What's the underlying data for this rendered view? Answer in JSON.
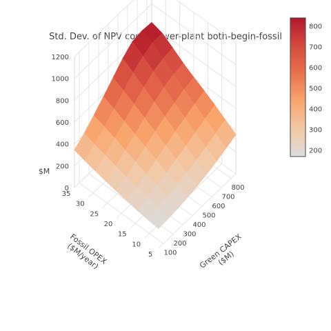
{
  "chart_data": {
    "type": "surface",
    "title": "Std. Dev. of NPV costs power-plant both-begin-fossil",
    "x_axis": {
      "label_line1": "Green CAPEX",
      "label_line2": "($M)",
      "ticks": [
        100,
        200,
        300,
        400,
        500,
        600,
        700,
        800
      ],
      "range": [
        50,
        850
      ]
    },
    "y_axis": {
      "label_line1": "Fossil OPEX",
      "label_line2": "($M/year)",
      "ticks": [
        5,
        10,
        15,
        20,
        25,
        30,
        35
      ],
      "range": [
        5,
        35
      ]
    },
    "z_axis": {
      "label": "$M",
      "ticks": [
        0,
        200,
        400,
        600,
        800,
        1000,
        1200
      ],
      "range": [
        0,
        1200
      ]
    },
    "x": [
      50,
      150,
      250,
      350,
      450,
      550,
      650,
      750,
      850
    ],
    "y": [
      5,
      8.75,
      12.5,
      16.25,
      20,
      23.75,
      27.5,
      31.25,
      35
    ],
    "z": [
      [
        180,
        185,
        195,
        210,
        230,
        255,
        285,
        320,
        360
      ],
      [
        190,
        205,
        225,
        250,
        280,
        310,
        345,
        385,
        425
      ],
      [
        205,
        230,
        260,
        295,
        335,
        370,
        410,
        450,
        490
      ],
      [
        225,
        260,
        300,
        345,
        390,
        435,
        475,
        515,
        550
      ],
      [
        245,
        290,
        340,
        395,
        450,
        500,
        540,
        580,
        605
      ],
      [
        265,
        320,
        380,
        440,
        505,
        565,
        615,
        650,
        665
      ],
      [
        290,
        350,
        420,
        490,
        560,
        630,
        690,
        725,
        735
      ],
      [
        315,
        380,
        455,
        535,
        615,
        695,
        760,
        800,
        800
      ],
      [
        345,
        410,
        490,
        575,
        665,
        755,
        825,
        840,
        830
      ]
    ],
    "colorscale": [
      [
        0.0,
        "#dcdcdc"
      ],
      [
        0.2,
        "#f2c9a6"
      ],
      [
        0.4,
        "#f9a56c"
      ],
      [
        0.6,
        "#e9724f"
      ],
      [
        0.8,
        "#d44a3e"
      ],
      [
        1.0,
        "#b2182b"
      ]
    ],
    "colorbar": {
      "ticks": [
        200,
        300,
        400,
        500,
        600,
        700,
        800
      ],
      "range": [
        170,
        840
      ]
    }
  }
}
